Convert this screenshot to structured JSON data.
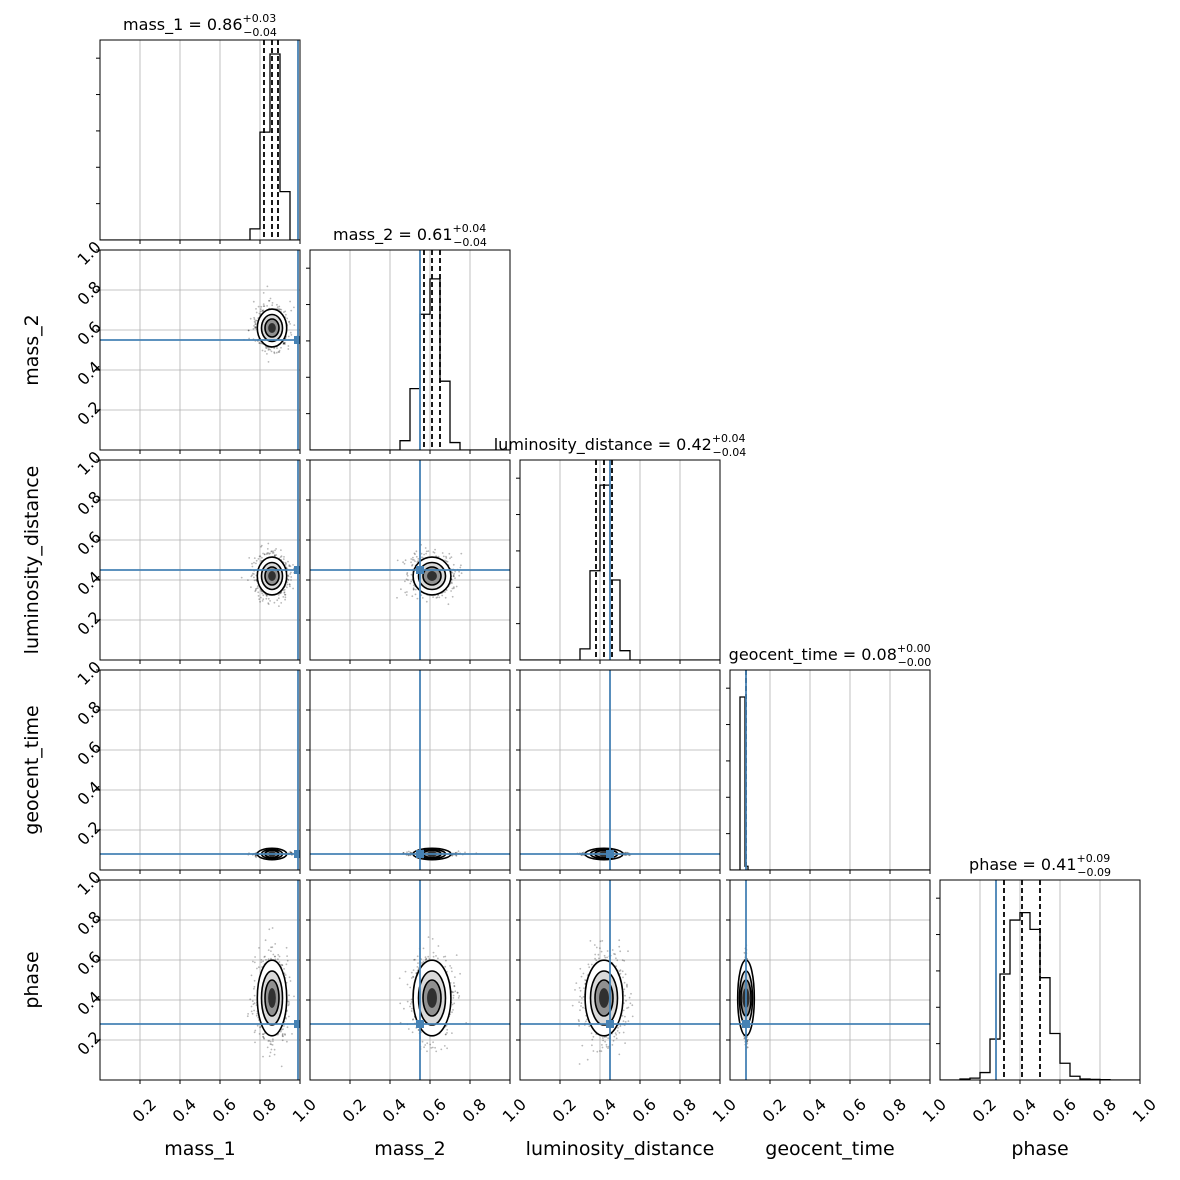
{
  "chart_data": {
    "type": "corner",
    "parameters": [
      "mass_1",
      "mass_2",
      "luminosity_distance",
      "geocent_time",
      "phase"
    ],
    "axis_labels": [
      "mass_1",
      "mass_2",
      "luminosity_distance",
      "geocent_time",
      "phase"
    ],
    "ranges": [
      [
        0,
        1
      ],
      [
        0,
        1
      ],
      [
        0,
        1
      ],
      [
        0,
        1
      ],
      [
        0,
        1
      ]
    ],
    "ticks": [
      0.2,
      0.4,
      0.6,
      0.8,
      1.0
    ],
    "tick_labels": [
      "0.2",
      "0.4",
      "0.6",
      "0.8",
      "1.0"
    ],
    "grid": true,
    "colors": {
      "truth": "#4682b4",
      "hist": "#000000",
      "grid": "#b0b0b0"
    },
    "truths": [
      0.99,
      0.55,
      0.45,
      0.08,
      0.28
    ],
    "titles": [
      {
        "label": "mass_1 = 0.86",
        "plus": "+0.03",
        "minus": "−0.04"
      },
      {
        "label": "mass_2 = 0.61",
        "plus": "+0.04",
        "minus": "−0.04"
      },
      {
        "label": "luminosity_distance = 0.42",
        "plus": "+0.04",
        "minus": "−0.04"
      },
      {
        "label": "geocent_time = 0.08",
        "plus": "+0.00",
        "minus": "−0.00"
      },
      {
        "label": "phase = 0.41",
        "plus": "+0.09",
        "minus": "−0.09"
      }
    ],
    "quantiles": [
      [
        0.82,
        0.86,
        0.89
      ],
      [
        0.57,
        0.61,
        0.65
      ],
      [
        0.38,
        0.42,
        0.46
      ],
      [
        0.08,
        0.08,
        0.08
      ],
      [
        0.32,
        0.41,
        0.5
      ]
    ],
    "histograms": [
      {
        "bin_edges": [
          0.75,
          0.8,
          0.85,
          0.9,
          0.95,
          0.98
        ],
        "counts": [
          0.06,
          0.58,
          1.0,
          0.26,
          0.0
        ]
      },
      {
        "bin_edges": [
          0.45,
          0.5,
          0.55,
          0.6,
          0.65,
          0.7,
          0.75
        ],
        "counts": [
          0.05,
          0.33,
          0.73,
          0.92,
          0.37,
          0.04
        ]
      },
      {
        "bin_edges": [
          0.3,
          0.35,
          0.4,
          0.45,
          0.5,
          0.55
        ],
        "counts": [
          0.06,
          0.48,
          0.94,
          0.43,
          0.05
        ]
      },
      {
        "bin_edges": [
          0.05,
          0.075,
          0.09
        ],
        "counts": [
          0.93,
          0.02
        ]
      },
      {
        "bin_edges": [
          0.1,
          0.15,
          0.2,
          0.25,
          0.3,
          0.35,
          0.4,
          0.45,
          0.5,
          0.55,
          0.6,
          0.65,
          0.7,
          0.75,
          0.8,
          0.85
        ],
        "counts": [
          0.005,
          0.01,
          0.04,
          0.22,
          0.57,
          0.86,
          0.9,
          0.81,
          0.55,
          0.25,
          0.09,
          0.02,
          0.005,
          0.003,
          0.002
        ]
      }
    ],
    "posterior": {
      "means": [
        0.86,
        0.61,
        0.42,
        0.08,
        0.41
      ],
      "sigmas": [
        0.035,
        0.045,
        0.045,
        0.004,
        0.09
      ]
    }
  }
}
